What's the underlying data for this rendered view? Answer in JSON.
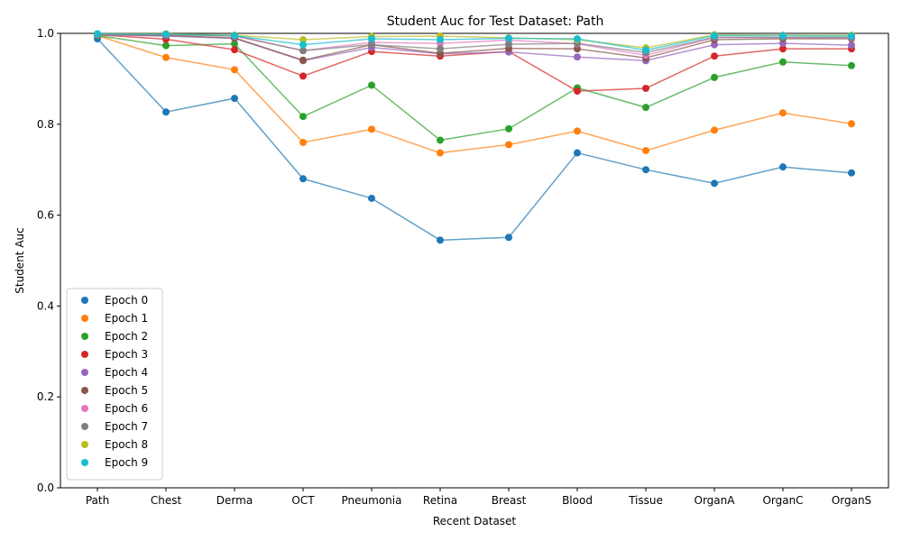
{
  "chart_data": {
    "type": "line",
    "title": "Student Auc for Test Dataset: Path",
    "xlabel": "Recent Dataset",
    "ylabel": "Student Auc",
    "ylim": [
      0,
      1
    ],
    "yticks": [
      "0.0",
      "0.2",
      "0.4",
      "0.6",
      "0.8",
      "1.0"
    ],
    "categories": [
      "Path",
      "Chest",
      "Derma",
      "OCT",
      "Pneumonia",
      "Retina",
      "Breast",
      "Blood",
      "Tissue",
      "OrganA",
      "OrganC",
      "OrganS"
    ],
    "grid": false,
    "legend_position": "lower-left",
    "series": [
      {
        "name": "Epoch 0",
        "color": "#1f77b4",
        "values": [
          0.988,
          0.827,
          0.857,
          0.68,
          0.637,
          0.545,
          0.551,
          0.737,
          0.7,
          0.67,
          0.706,
          0.693
        ]
      },
      {
        "name": "Epoch 1",
        "color": "#ff7f0e",
        "values": [
          0.995,
          0.947,
          0.92,
          0.76,
          0.789,
          0.737,
          0.755,
          0.785,
          0.742,
          0.787,
          0.825,
          0.801
        ]
      },
      {
        "name": "Epoch 2",
        "color": "#2ca02c",
        "values": [
          0.995,
          0.973,
          0.977,
          0.817,
          0.886,
          0.765,
          0.79,
          0.88,
          0.837,
          0.903,
          0.937,
          0.929
        ]
      },
      {
        "name": "Epoch 3",
        "color": "#d62728",
        "values": [
          0.997,
          0.987,
          0.964,
          0.906,
          0.96,
          0.95,
          0.96,
          0.873,
          0.879,
          0.95,
          0.966,
          0.966
        ]
      },
      {
        "name": "Epoch 4",
        "color": "#9467bd",
        "values": [
          0.997,
          0.994,
          0.989,
          0.94,
          0.969,
          0.955,
          0.959,
          0.948,
          0.94,
          0.975,
          0.978,
          0.974
        ]
      },
      {
        "name": "Epoch 5",
        "color": "#8c564b",
        "values": [
          0.998,
          0.995,
          0.99,
          0.941,
          0.975,
          0.956,
          0.967,
          0.966,
          0.946,
          0.986,
          0.988,
          0.988
        ]
      },
      {
        "name": "Epoch 6",
        "color": "#e377c2",
        "values": [
          0.998,
          0.997,
          0.994,
          0.962,
          0.98,
          0.978,
          0.985,
          0.977,
          0.952,
          0.991,
          0.991,
          0.99
        ]
      },
      {
        "name": "Epoch 7",
        "color": "#7f7f7f",
        "values": [
          0.998,
          0.997,
          0.995,
          0.962,
          0.975,
          0.966,
          0.976,
          0.978,
          0.958,
          0.991,
          0.991,
          0.991
        ]
      },
      {
        "name": "Epoch 8",
        "color": "#bcbd22",
        "values": [
          0.999,
          0.999,
          0.996,
          0.986,
          0.993,
          0.994,
          0.99,
          0.986,
          0.968,
          0.997,
          0.996,
          0.996
        ]
      },
      {
        "name": "Epoch 9",
        "color": "#17becf",
        "values": [
          0.999,
          0.998,
          0.995,
          0.975,
          0.988,
          0.986,
          0.989,
          0.988,
          0.963,
          0.995,
          0.995,
          0.994
        ]
      }
    ]
  }
}
